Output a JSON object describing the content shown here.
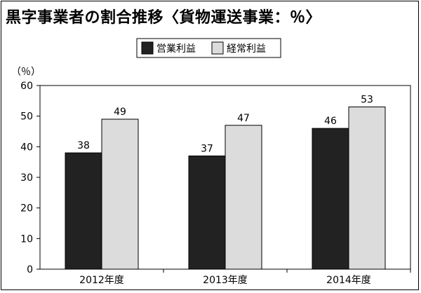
{
  "title": "黒字事業者の割合推移〈貨物運送事業：％〉",
  "chart_data": {
    "type": "bar",
    "ylabel": "（％）",
    "ylim": [
      0,
      60
    ],
    "yticks": [
      0,
      10,
      20,
      30,
      40,
      50,
      60
    ],
    "categories": [
      "2012年度",
      "2013年度",
      "2014年度"
    ],
    "series": [
      {
        "name": "営業利益",
        "color": "#222222",
        "values": [
          38,
          37,
          46
        ]
      },
      {
        "name": "経常利益",
        "color": "#dcdcdc",
        "values": [
          49,
          47,
          53
        ]
      }
    ],
    "legend_position": "top-right",
    "grid": false
  }
}
